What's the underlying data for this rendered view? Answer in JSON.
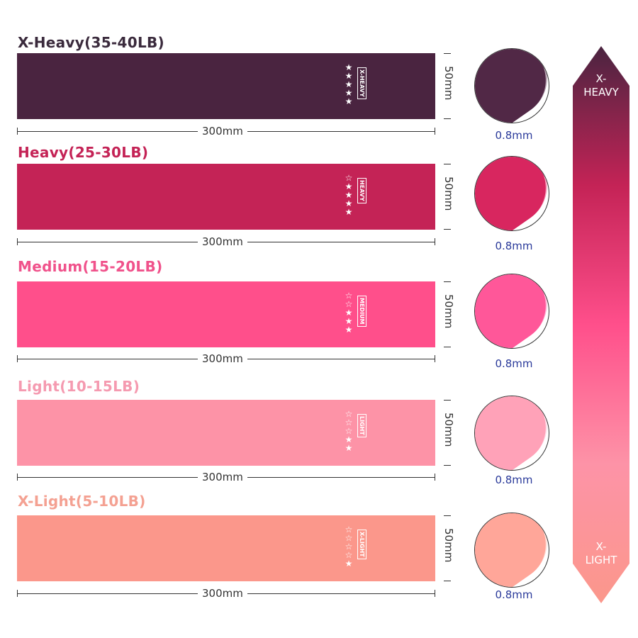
{
  "bands": [
    {
      "title": "X-Heavy(35-40LB)",
      "tag": "X-HEAVY",
      "stars_filled": 5,
      "stars_total": 5,
      "color": "#4a2440",
      "title_color": "#3a2a3c",
      "width": "300mm",
      "height": "50mm",
      "thickness": "0.8mm"
    },
    {
      "title": "Heavy(25-30LB)",
      "tag": "HEAVY",
      "stars_filled": 4,
      "stars_total": 5,
      "color": "#c42356",
      "title_color": "#c42356",
      "width": "300mm",
      "height": "50mm",
      "thickness": "0.8mm"
    },
    {
      "title": "Medium(15-20LB)",
      "tag": "MEDIUM",
      "stars_filled": 3,
      "stars_total": 5,
      "color": "#ff4f8b",
      "title_color": "#f0528b",
      "width": "300mm",
      "height": "50mm",
      "thickness": "0.8mm"
    },
    {
      "title": "Light(10-15LB)",
      "tag": "LIGHT",
      "stars_filled": 2,
      "stars_total": 5,
      "color": "#fd93a7",
      "title_color": "#f59ab0",
      "width": "300mm",
      "height": "50mm",
      "thickness": "0.8mm"
    },
    {
      "title": "X-Light(5-10LB)",
      "tag": "X-LIGHT",
      "stars_filled": 1,
      "stars_total": 5,
      "color": "#fb978b",
      "title_color": "#f4a192",
      "width": "300mm",
      "height": "50mm",
      "thickness": "0.8mm"
    }
  ],
  "scale": {
    "top_line1": "X-",
    "top_line2": "HEAVY",
    "bottom_line1": "X-",
    "bottom_line2": "LIGHT",
    "gradient": [
      "#4a2440",
      "#c42356",
      "#ff4f8b",
      "#fd93a7",
      "#fb978b"
    ]
  }
}
